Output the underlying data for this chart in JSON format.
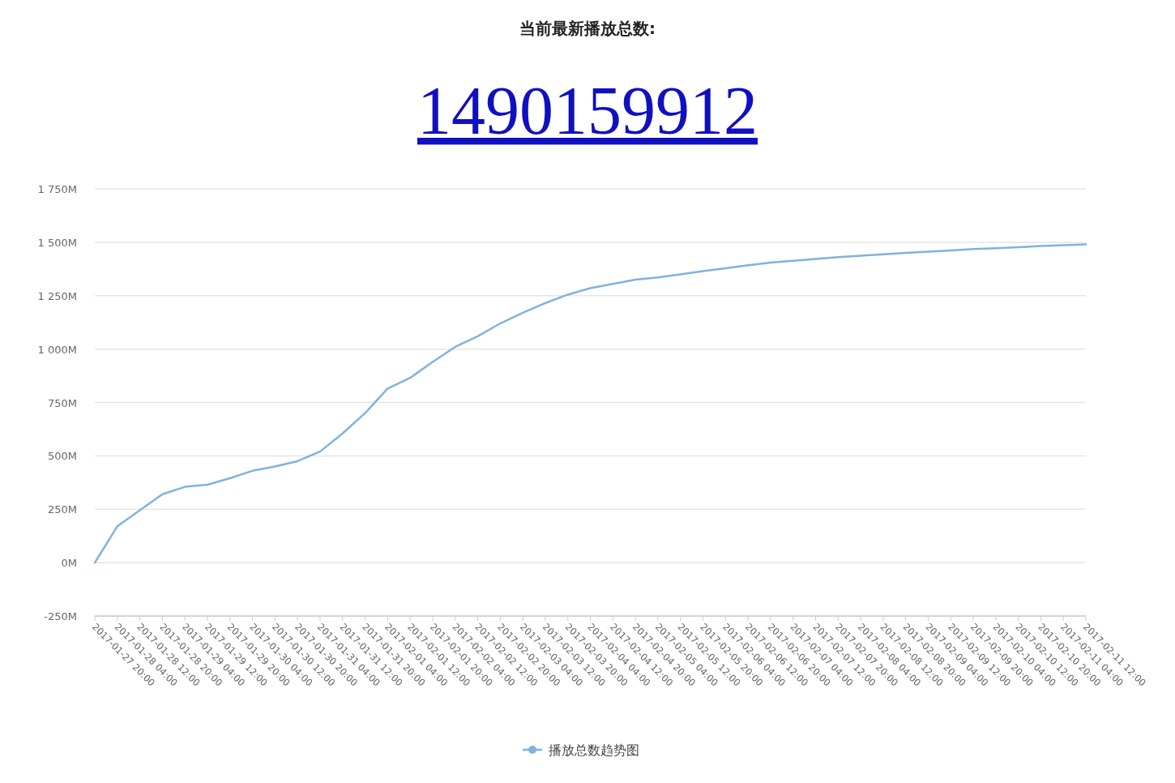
{
  "chart_data": {
    "type": "line",
    "title": "当前最新播放总数:",
    "subtitle": "1490159912",
    "categories": [
      "2017-01-27 20:00",
      "2017-01-28 04:00",
      "2017-01-28 12:00",
      "2017-01-28 20:00",
      "2017-01-29 04:00",
      "2017-01-29 12:00",
      "2017-01-29 20:00",
      "2017-01-30 04:00",
      "2017-01-30 12:00",
      "2017-01-30 20:00",
      "2017-01-31 04:00",
      "2017-01-31 12:00",
      "2017-01-31 20:00",
      "2017-02-01 04:00",
      "2017-02-01 12:00",
      "2017-02-01 20:00",
      "2017-02-02 04:00",
      "2017-02-02 12:00",
      "2017-02-02 20:00",
      "2017-02-03 04:00",
      "2017-02-03 12:00",
      "2017-02-03 20:00",
      "2017-02-04 04:00",
      "2017-02-04 12:00",
      "2017-02-04 20:00",
      "2017-02-05 04:00",
      "2017-02-05 12:00",
      "2017-02-05 20:00",
      "2017-02-06 04:00",
      "2017-02-06 12:00",
      "2017-02-06 20:00",
      "2017-02-07 04:00",
      "2017-02-07 12:00",
      "2017-02-07 20:00",
      "2017-02-08 04:00",
      "2017-02-08 12:00",
      "2017-02-08 20:00",
      "2017-02-09 04:00",
      "2017-02-09 12:00",
      "2017-02-09 20:00",
      "2017-02-10 04:00",
      "2017-02-10 12:00",
      "2017-02-10 20:00",
      "2017-02-11 04:00",
      "2017-02-11 12:00"
    ],
    "series": [
      {
        "name": "播放总数趋势图",
        "color": "#7fb3dc",
        "values": [
          0,
          170,
          245,
          320,
          355,
          365,
          395,
          430,
          450,
          475,
          520,
          605,
          700,
          815,
          865,
          940,
          1010,
          1060,
          1120,
          1170,
          1215,
          1255,
          1285,
          1305,
          1325,
          1335,
          1350,
          1365,
          1378,
          1392,
          1405,
          1413,
          1422,
          1430,
          1437,
          1444,
          1450,
          1456,
          1462,
          1468,
          1472,
          1477,
          1482,
          1486,
          1490
        ]
      }
    ],
    "ylim": [
      -250,
      1750
    ],
    "yticks": [
      {
        "value": -250,
        "label": "-250M"
      },
      {
        "value": 0,
        "label": "0M"
      },
      {
        "value": 250,
        "label": "250M"
      },
      {
        "value": 500,
        "label": "500M"
      },
      {
        "value": 750,
        "label": "750M"
      },
      {
        "value": 1000,
        "label": "1 000M"
      },
      {
        "value": 1250,
        "label": "1 250M"
      },
      {
        "value": 1500,
        "label": "1 500M"
      },
      {
        "value": 1750,
        "label": "1 750M"
      }
    ],
    "grid": "y",
    "legend": "bottom"
  }
}
